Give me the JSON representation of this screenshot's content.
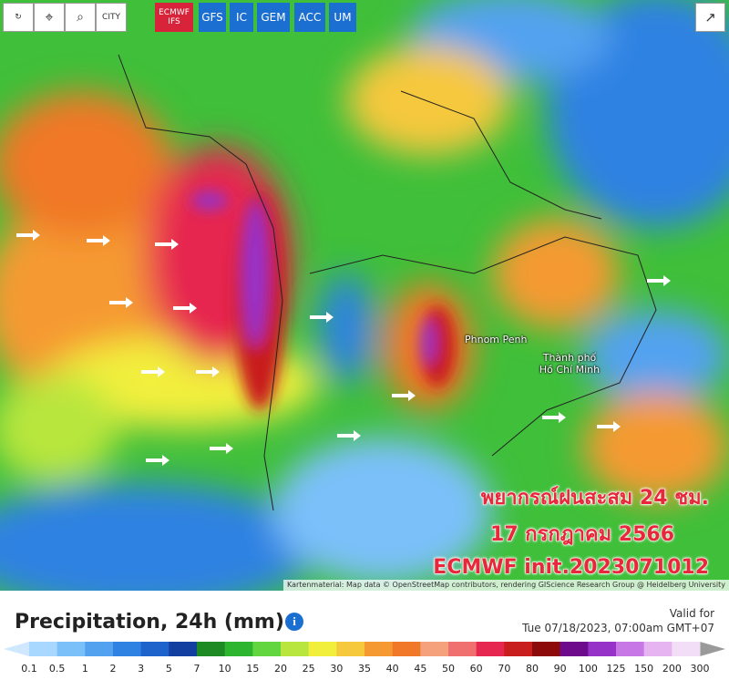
{
  "toolbar": {
    "tools": [
      "CITY"
    ],
    "models": [
      "ECMWF IFS",
      "GFS",
      "IC",
      "GEM",
      "ACC",
      "UM"
    ]
  },
  "places": [
    "Phnom Penh",
    "Thành phố Hồ Chí Minh"
  ],
  "overlay": [
    "พยากรณ์ฝนสะสม 24 ชม.",
    "17 กรกฎาคม 2566",
    "ECMWF init.2023071012"
  ],
  "attribution": "Kartenmaterial: Map data © OpenStreetMap contributors, rendering GIScience Research Group @ Heidelberg University",
  "legend": {
    "title": "Precipitation, 24h (mm)",
    "info": "i",
    "valid_label": "Valid for",
    "valid_time": "Tue 07/18/2023, 07:00am GMT+07",
    "scale": {
      "ticks": [
        0.1,
        0.5,
        1,
        2,
        3,
        5,
        7,
        10,
        15,
        20,
        25,
        30,
        35,
        40,
        45,
        50,
        60,
        70,
        80,
        90,
        100,
        125,
        150,
        200,
        300
      ],
      "colors": [
        "#a8d8ff",
        "#7cc0fa",
        "#52a2f0",
        "#2f82e2",
        "#1e62cb",
        "#123fa0",
        "#1d8a24",
        "#2db52f",
        "#62d63e",
        "#b8e63e",
        "#f2ef3c",
        "#f6c83c",
        "#f59a32",
        "#f07828",
        "#f5a27c",
        "#f07070",
        "#e62850",
        "#c81e1e",
        "#8c0a0a",
        "#6e0a8c",
        "#9632c8",
        "#c878e6",
        "#e6b4f0",
        "#f2def6"
      ],
      "below_color": "#cfe7ff",
      "above_color": "#9a9a9a"
    }
  }
}
